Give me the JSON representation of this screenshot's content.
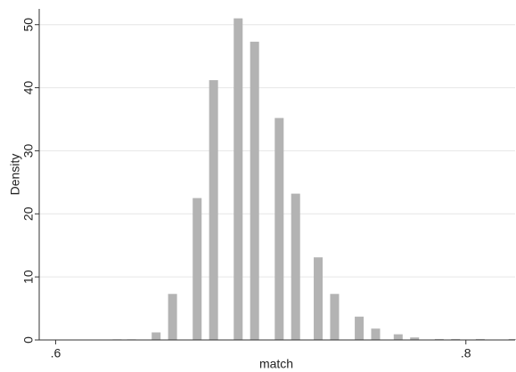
{
  "chart_data": {
    "type": "histogram",
    "x": [
      0.63,
      0.637,
      0.649,
      0.657,
      0.669,
      0.677,
      0.689,
      0.697,
      0.709,
      0.717,
      0.728,
      0.736,
      0.748,
      0.756,
      0.767,
      0.775,
      0.787,
      0.795,
      0.807,
      0.823
    ],
    "values": [
      0.1,
      0.1,
      1.2,
      7.3,
      22.5,
      41.2,
      51,
      47.3,
      35.2,
      23.2,
      13.1,
      7.3,
      3.7,
      1.8,
      0.9,
      0.4,
      0.15,
      0.15,
      0.15,
      0.15
    ],
    "color": "#b3b3b3",
    "xlabel": "match",
    "ylabel": "Density",
    "xlim": [
      0.592,
      0.824
    ],
    "ylim": [
      0,
      52.5
    ],
    "xticks": [
      {
        "value": 0.6,
        "label": ".6"
      },
      {
        "value": 0.8,
        "label": ".8"
      }
    ],
    "yticks": [
      0,
      10,
      20,
      30,
      40,
      50
    ],
    "grid": true
  }
}
